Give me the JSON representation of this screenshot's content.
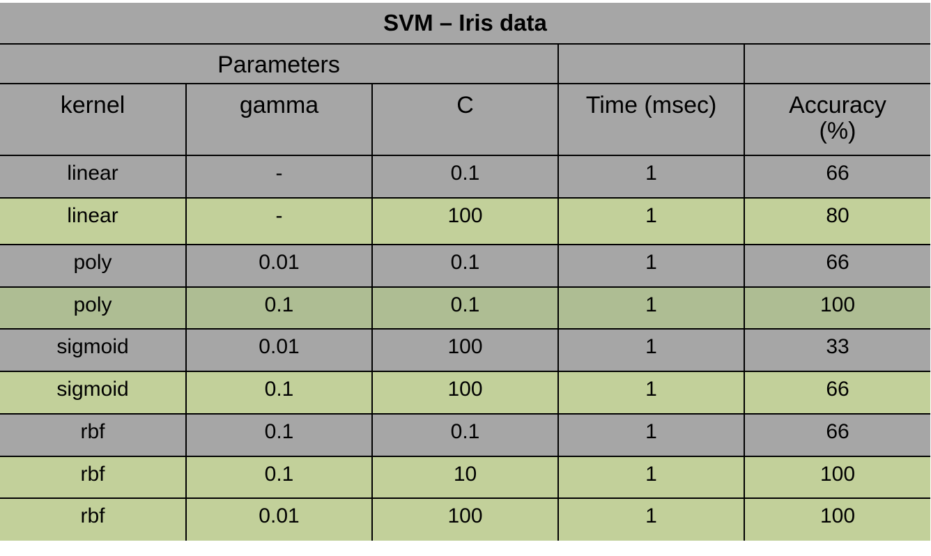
{
  "chart_data": {
    "type": "table",
    "title": "SVM – Iris data",
    "group_header": {
      "label": "Parameters",
      "spans": [
        "kernel",
        "gamma",
        "C"
      ]
    },
    "columns": [
      "kernel",
      "gamma",
      "C",
      "Time (msec)",
      "Accuracy (%)"
    ],
    "rows": [
      {
        "kernel": "linear",
        "gamma": "-",
        "C": "0.1",
        "time": "1",
        "accuracy": "66"
      },
      {
        "kernel": "linear",
        "gamma": "-",
        "C": "100",
        "time": "1",
        "accuracy": "80"
      },
      {
        "kernel": "poly",
        "gamma": "0.01",
        "C": "0.1",
        "time": "1",
        "accuracy": "66"
      },
      {
        "kernel": "poly",
        "gamma": "0.1",
        "C": "0.1",
        "time": "1",
        "accuracy": "100"
      },
      {
        "kernel": "sigmoid",
        "gamma": "0.01",
        "C": "100",
        "time": "1",
        "accuracy": "33"
      },
      {
        "kernel": "sigmoid",
        "gamma": "0.1",
        "C": "100",
        "time": "1",
        "accuracy": "66"
      },
      {
        "kernel": "rbf",
        "gamma": "0.1",
        "C": "0.1",
        "time": "1",
        "accuracy": "66"
      },
      {
        "kernel": "rbf",
        "gamma": "0.1",
        "C": "10",
        "time": "1",
        "accuracy": "100"
      },
      {
        "kernel": "rbf",
        "gamma": "0.01",
        "C": "100",
        "time": "1",
        "accuracy": "100"
      }
    ],
    "row_colors": [
      "#a6a6a6",
      "#c2d09a",
      "#a6a6a6",
      "#aebd93",
      "#a6a6a6",
      "#c2d09a",
      "#a6a6a6",
      "#c2d09a",
      "#c2d09a"
    ],
    "colors": {
      "header": "#a6a6a6",
      "gray_row": "#a6a6a6",
      "green_row": "#c2d09a",
      "green_row_dark": "#aebd93",
      "border": "#000000"
    }
  }
}
